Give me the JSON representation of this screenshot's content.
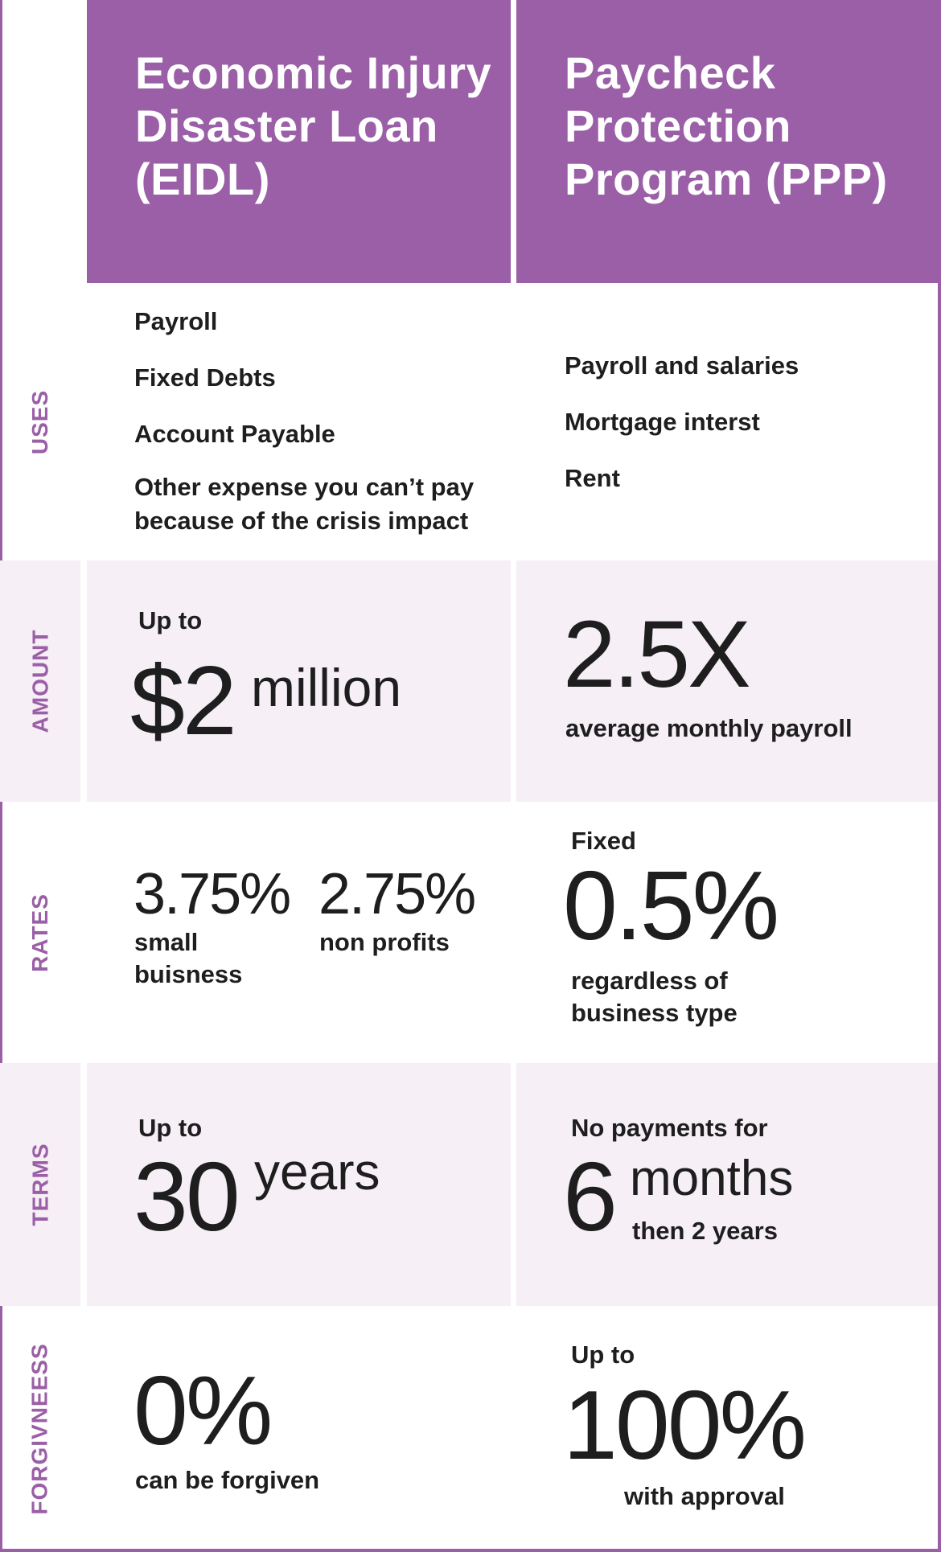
{
  "header": {
    "eidl": [
      "Economic Injury",
      "Disaster Loan",
      "(EIDL)"
    ],
    "ppp": [
      "Paycheck",
      "Protection",
      "Program (PPP)"
    ]
  },
  "rows": {
    "uses": {
      "label": "USES",
      "eidl_items": [
        "Payroll",
        "Fixed Debts",
        "Account Payable",
        "Other expense you can’t pay",
        "because of the crisis impact"
      ],
      "ppp_items": [
        "Payroll and salaries",
        "Mortgage interst",
        "Rent"
      ]
    },
    "amount": {
      "label": "AMOUNT",
      "eidl_prefix": "Up to",
      "eidl_value": "$2",
      "eidl_unit": "million",
      "ppp_value": "2.5X",
      "ppp_caption": "average monthly payroll"
    },
    "rates": {
      "label": "RATES",
      "eidl_small_value": "3.75%",
      "eidl_small_caption": [
        "small",
        "buisness"
      ],
      "eidl_np_value": "2.75%",
      "eidl_np_caption": "non profits",
      "ppp_prefix": "Fixed",
      "ppp_value": "0.5%",
      "ppp_caption": [
        "regardless of",
        "business type"
      ]
    },
    "terms": {
      "label": "TERMS",
      "eidl_prefix": "Up to",
      "eidl_value": "30",
      "eidl_unit": "years",
      "ppp_prefix": "No payments for",
      "ppp_value": "6",
      "ppp_unit": "months",
      "ppp_caption": "then 2 years"
    },
    "forgiveness": {
      "label": "FORGIVNEESS",
      "eidl_value": "0%",
      "eidl_caption": "can be forgiven",
      "ppp_prefix": "Up to",
      "ppp_value": "100%",
      "ppp_caption": "with approval"
    }
  },
  "colors": {
    "accent": "#9a5fa6",
    "shade": "#f6eff6",
    "text": "#1e1e1e"
  }
}
